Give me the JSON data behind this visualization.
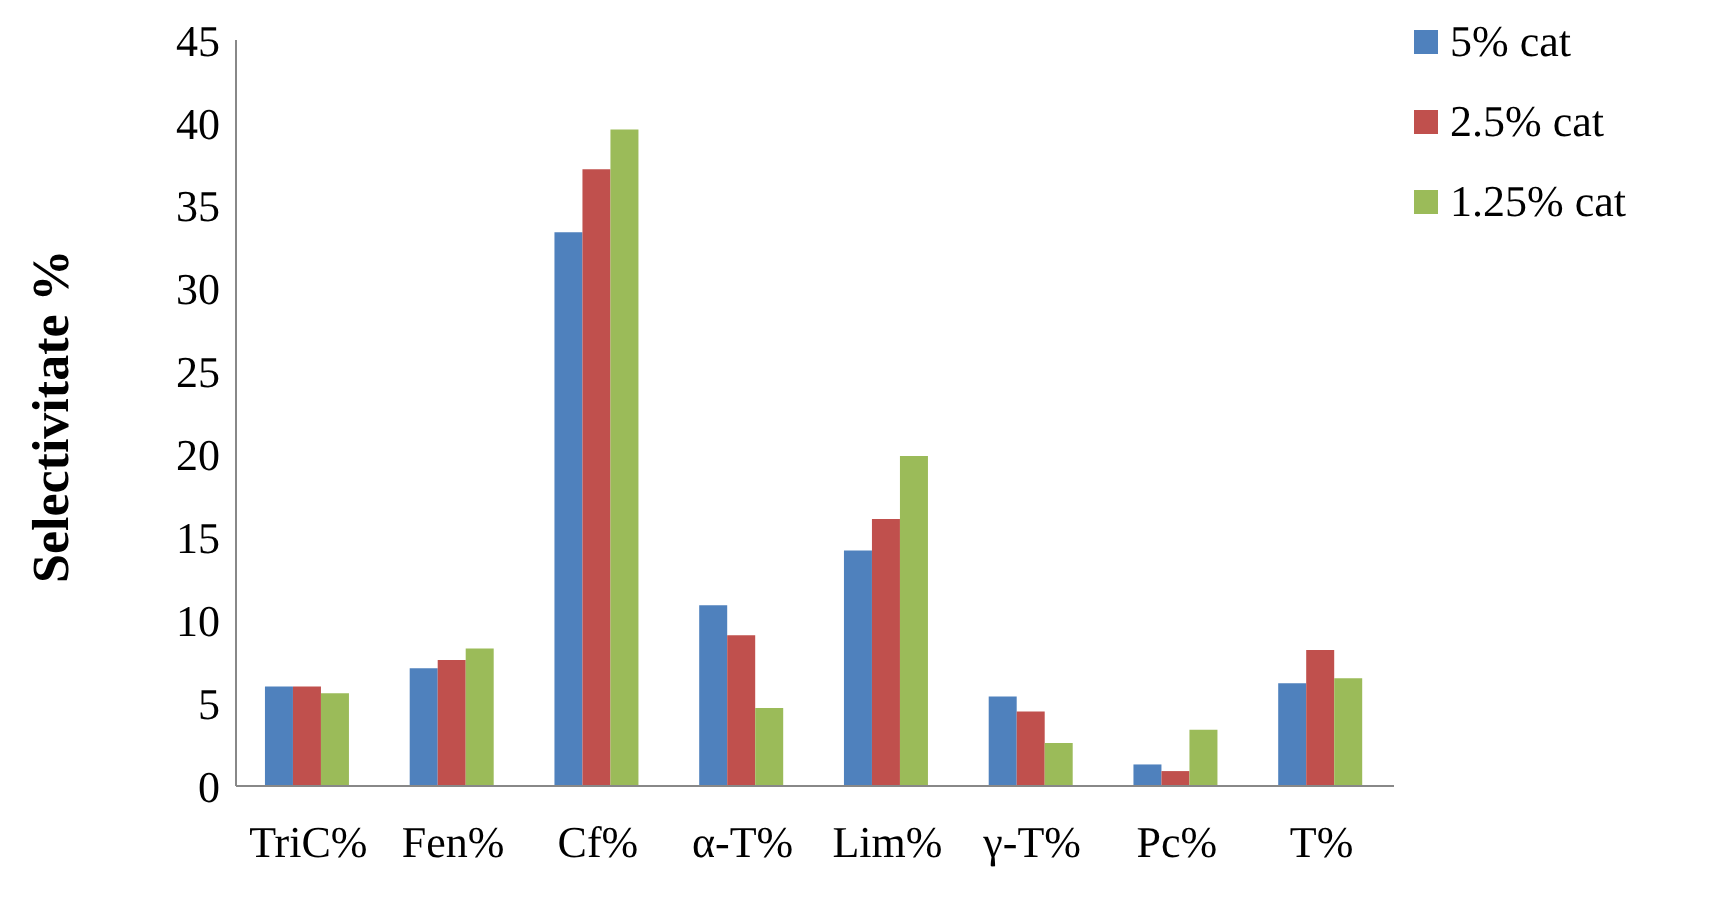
{
  "chart_data": {
    "type": "bar",
    "ylabel": "Selectivitate %",
    "categories": [
      "TriC%",
      "Fen%",
      "Cf%",
      "α-T%",
      "Lim%",
      "γ-T%",
      "Pc%",
      "T%"
    ],
    "series": [
      {
        "name": "5% cat",
        "color": "#4f81bd",
        "values": [
          6.0,
          7.1,
          33.4,
          10.9,
          14.2,
          5.4,
          1.3,
          6.2
        ]
      },
      {
        "name": "2.5% cat",
        "color": "#c0504d",
        "values": [
          6.0,
          7.6,
          37.2,
          9.1,
          16.1,
          4.5,
          0.9,
          8.2
        ]
      },
      {
        "name": "1.25% cat",
        "color": "#9bbb59",
        "values": [
          5.6,
          8.3,
          39.6,
          4.7,
          19.9,
          2.6,
          3.4,
          6.5
        ]
      }
    ],
    "ylim": [
      0,
      45
    ],
    "yticks": [
      0,
      5,
      10,
      15,
      20,
      25,
      30,
      35,
      40,
      45
    ],
    "grid": false,
    "legend": "top right"
  }
}
